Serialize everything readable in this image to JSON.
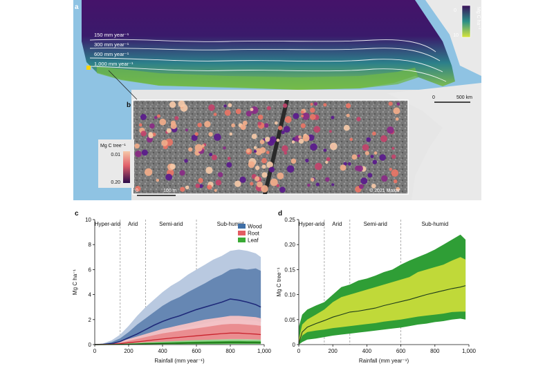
{
  "colors": {
    "ocean": "#8fc3e3",
    "land": "#e9e9e9",
    "carbon_dark": "#3b1059",
    "carbon_mid": "#2a8f86",
    "carbon_high": "#d8e43a",
    "wood": "#3f6fa6",
    "root": "#e25d63",
    "leaf": "#3aaa35",
    "tree_high": "#f2ad8a",
    "tree_low": "#5a1a8c"
  },
  "panel_a": {
    "label": "a",
    "isohyets": [
      "150 mm year⁻¹",
      "300 mm year⁻¹",
      "600 mm year⁻¹",
      "1,000 mm year⁻¹"
    ],
    "colorbar": {
      "min": "0",
      "max": "10",
      "unit": "Mg C ha⁻¹"
    },
    "scalebar": {
      "start": "0",
      "end": "500 km"
    }
  },
  "panel_b": {
    "label": "b",
    "colorbar": {
      "title": "Mg C tree⁻¹",
      "min": "0.01",
      "max": "0.20"
    },
    "scalebar": {
      "start": "0",
      "end": "100 m"
    },
    "credit": "©  2021  Maxar"
  },
  "chart_data": [
    {
      "panel": "c",
      "type": "area",
      "title": "",
      "xlabel": "Rainfall (mm year⁻¹)",
      "ylabel": "Mg C ha⁻¹",
      "xlim": [
        0,
        1000
      ],
      "ylim": [
        0,
        10
      ],
      "xticks": [
        "0",
        "200",
        "400",
        "600",
        "800",
        "1,000"
      ],
      "yticks": [
        "0",
        "2",
        "4",
        "6",
        "8",
        "10"
      ],
      "zones": [
        {
          "name": "Hyper-arid",
          "boundary": 150
        },
        {
          "name": "Arid",
          "boundary": 300
        },
        {
          "name": "Semi-arid",
          "boundary": 600
        },
        {
          "name": "Sub-humid",
          "boundary": null
        }
      ],
      "legend": {
        "placement": "top-right",
        "entries": [
          "Wood",
          "Root",
          "Leaf"
        ]
      },
      "x": [
        0,
        50,
        100,
        150,
        200,
        250,
        300,
        350,
        400,
        450,
        500,
        550,
        600,
        650,
        700,
        750,
        800,
        850,
        900,
        950,
        980
      ],
      "series": [
        {
          "name": "Wood",
          "median": [
            0.0,
            0.02,
            0.08,
            0.25,
            0.55,
            0.85,
            1.2,
            1.55,
            1.85,
            2.1,
            2.3,
            2.55,
            2.8,
            3.0,
            3.2,
            3.4,
            3.65,
            3.55,
            3.4,
            3.2,
            3.0
          ],
          "inner_low": [
            0.0,
            0.01,
            0.05,
            0.12,
            0.25,
            0.4,
            0.55,
            0.75,
            0.95,
            1.1,
            1.25,
            1.4,
            1.55,
            1.7,
            1.85,
            1.95,
            2.0,
            2.0,
            1.95,
            1.9,
            1.8
          ],
          "inner_high": [
            0.0,
            0.05,
            0.2,
            0.5,
            1.0,
            1.6,
            2.1,
            2.6,
            3.1,
            3.5,
            3.8,
            4.2,
            4.55,
            4.9,
            5.3,
            5.6,
            6.0,
            6.1,
            6.0,
            6.1,
            5.9
          ],
          "outer_low": [
            0.0,
            0.0,
            0.02,
            0.05,
            0.1,
            0.15,
            0.2,
            0.3,
            0.4,
            0.5,
            0.6,
            0.7,
            0.8,
            0.9,
            1.0,
            1.05,
            1.1,
            1.1,
            1.1,
            1.05,
            1.0
          ],
          "outer_high": [
            0.0,
            0.1,
            0.35,
            0.8,
            1.5,
            2.3,
            3.0,
            3.6,
            4.2,
            4.7,
            5.1,
            5.6,
            6.0,
            6.4,
            6.8,
            7.1,
            7.5,
            7.6,
            7.5,
            7.3,
            7.0
          ]
        },
        {
          "name": "Root",
          "median": [
            0.0,
            0.01,
            0.03,
            0.08,
            0.15,
            0.22,
            0.3,
            0.38,
            0.45,
            0.52,
            0.58,
            0.64,
            0.7,
            0.76,
            0.82,
            0.88,
            0.92,
            0.92,
            0.88,
            0.84,
            0.8
          ],
          "inner_low": [
            0.0,
            0.0,
            0.01,
            0.04,
            0.07,
            0.1,
            0.14,
            0.18,
            0.22,
            0.25,
            0.28,
            0.31,
            0.34,
            0.37,
            0.4,
            0.43,
            0.45,
            0.45,
            0.44,
            0.42,
            0.4
          ],
          "inner_high": [
            0.0,
            0.02,
            0.06,
            0.15,
            0.3,
            0.45,
            0.6,
            0.75,
            0.9,
            1.0,
            1.1,
            1.2,
            1.3,
            1.4,
            1.5,
            1.6,
            1.65,
            1.65,
            1.6,
            1.55,
            1.5
          ],
          "outer_low": [
            0.0,
            0.0,
            0.0,
            0.02,
            0.03,
            0.05,
            0.07,
            0.09,
            0.11,
            0.13,
            0.15,
            0.17,
            0.19,
            0.21,
            0.23,
            0.24,
            0.25,
            0.25,
            0.25,
            0.24,
            0.23
          ],
          "outer_high": [
            0.0,
            0.03,
            0.1,
            0.25,
            0.45,
            0.65,
            0.85,
            1.05,
            1.25,
            1.4,
            1.55,
            1.7,
            1.85,
            2.0,
            2.1,
            2.2,
            2.3,
            2.3,
            2.25,
            2.2,
            2.1
          ]
        },
        {
          "name": "Leaf",
          "median": [
            0.0,
            0.0,
            0.01,
            0.02,
            0.03,
            0.05,
            0.06,
            0.08,
            0.09,
            0.1,
            0.11,
            0.12,
            0.13,
            0.14,
            0.15,
            0.16,
            0.17,
            0.17,
            0.16,
            0.16,
            0.15
          ],
          "inner_low": [
            0.0,
            0.0,
            0.0,
            0.01,
            0.01,
            0.02,
            0.03,
            0.04,
            0.04,
            0.05,
            0.05,
            0.06,
            0.06,
            0.07,
            0.07,
            0.08,
            0.08,
            0.08,
            0.08,
            0.08,
            0.07
          ],
          "inner_high": [
            0.0,
            0.01,
            0.02,
            0.04,
            0.06,
            0.09,
            0.12,
            0.14,
            0.16,
            0.18,
            0.2,
            0.22,
            0.24,
            0.25,
            0.26,
            0.27,
            0.28,
            0.28,
            0.27,
            0.27,
            0.26
          ],
          "outer_low": [
            0.0,
            0.0,
            0.0,
            0.0,
            0.0,
            0.01,
            0.01,
            0.01,
            0.02,
            0.02,
            0.02,
            0.02,
            0.03,
            0.03,
            0.03,
            0.03,
            0.04,
            0.04,
            0.04,
            0.04,
            0.04
          ],
          "outer_high": [
            0.0,
            0.01,
            0.03,
            0.06,
            0.1,
            0.14,
            0.18,
            0.21,
            0.24,
            0.27,
            0.3,
            0.33,
            0.36,
            0.38,
            0.4,
            0.41,
            0.42,
            0.42,
            0.41,
            0.4,
            0.39
          ]
        }
      ]
    },
    {
      "panel": "d",
      "type": "area",
      "title": "",
      "xlabel": "Rainfall (mm year⁻¹)",
      "ylabel": "Mg C tree⁻¹",
      "xlim": [
        0,
        1000
      ],
      "ylim": [
        0,
        0.25
      ],
      "xticks": [
        "0",
        "200",
        "400",
        "600",
        "800",
        "1,000"
      ],
      "yticks": [
        "0",
        "0.05",
        "0.10",
        "0.15",
        "0.20",
        "0.25"
      ],
      "zones": [
        {
          "name": "Hyper-arid",
          "boundary": 150
        },
        {
          "name": "Arid",
          "boundary": 300
        },
        {
          "name": "Semi-arid",
          "boundary": 600
        },
        {
          "name": "Sub-humid",
          "boundary": null
        }
      ],
      "x": [
        0,
        20,
        50,
        100,
        150,
        200,
        250,
        300,
        350,
        400,
        450,
        500,
        550,
        600,
        650,
        700,
        750,
        800,
        850,
        900,
        950,
        980
      ],
      "series": [
        {
          "median": [
            0.002,
            0.025,
            0.035,
            0.042,
            0.048,
            0.055,
            0.06,
            0.065,
            0.067,
            0.07,
            0.073,
            0.078,
            0.082,
            0.086,
            0.09,
            0.095,
            0.1,
            0.104,
            0.108,
            0.112,
            0.115,
            0.118
          ],
          "inner_low": [
            0.002,
            0.018,
            0.025,
            0.028,
            0.03,
            0.033,
            0.035,
            0.037,
            0.039,
            0.041,
            0.043,
            0.046,
            0.048,
            0.05,
            0.053,
            0.056,
            0.058,
            0.06,
            0.062,
            0.065,
            0.066,
            0.066
          ],
          "inner_high": [
            0.01,
            0.04,
            0.05,
            0.06,
            0.07,
            0.085,
            0.095,
            0.1,
            0.105,
            0.11,
            0.115,
            0.12,
            0.125,
            0.13,
            0.135,
            0.145,
            0.15,
            0.155,
            0.16,
            0.168,
            0.175,
            0.17
          ],
          "outer_low": [
            0.0,
            0.005,
            0.01,
            0.012,
            0.015,
            0.018,
            0.02,
            0.022,
            0.024,
            0.026,
            0.028,
            0.03,
            0.032,
            0.034,
            0.037,
            0.04,
            0.042,
            0.045,
            0.047,
            0.05,
            0.052,
            0.05
          ],
          "outer_high": [
            0.035,
            0.06,
            0.07,
            0.078,
            0.085,
            0.1,
            0.115,
            0.12,
            0.128,
            0.132,
            0.138,
            0.145,
            0.15,
            0.16,
            0.168,
            0.175,
            0.182,
            0.19,
            0.2,
            0.21,
            0.22,
            0.21
          ]
        }
      ]
    }
  ]
}
